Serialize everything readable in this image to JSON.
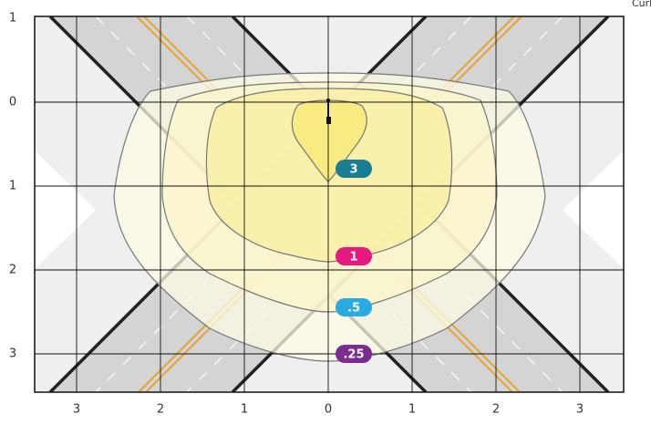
{
  "curb_label": "Curb",
  "y_labels": [
    "1",
    "0",
    "1",
    "2",
    "3"
  ],
  "x_labels": [
    "3",
    "2",
    "1",
    "0",
    "1",
    "2",
    "3"
  ],
  "contours": [
    {
      "label": "3",
      "color": "#1b7d93"
    },
    {
      "label": "1",
      "color": "#e5197f"
    },
    {
      "label": ".5",
      "color": "#29abe2"
    },
    {
      "label": ".25",
      "color": "#7b2c8f"
    }
  ]
}
